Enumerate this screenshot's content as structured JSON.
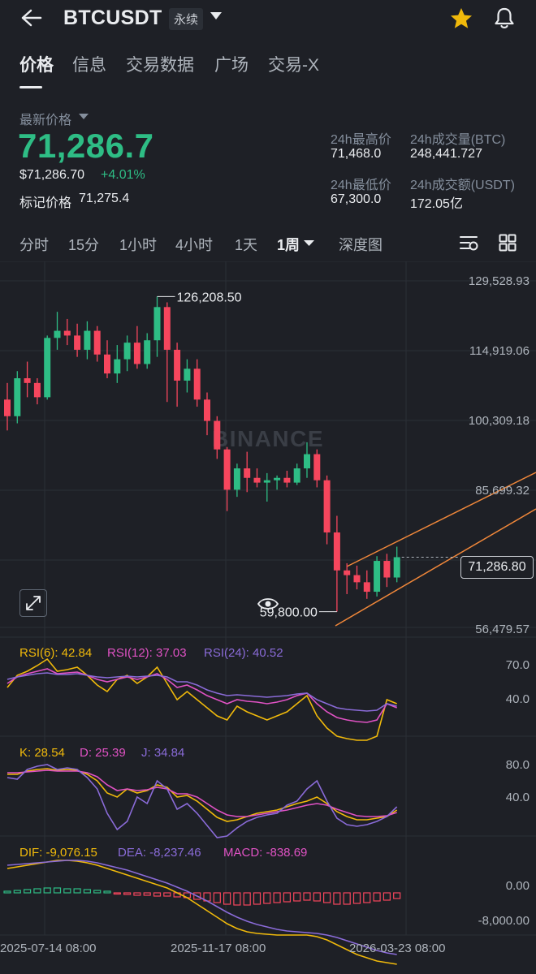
{
  "header": {
    "symbol": "BTCUSDT",
    "contract_tag": "永续"
  },
  "tabs": [
    {
      "label": "价格",
      "active": true
    },
    {
      "label": "信息"
    },
    {
      "label": "交易数据"
    },
    {
      "label": "广场"
    },
    {
      "label": "交易-X"
    }
  ],
  "price": {
    "latest_label": "最新价格",
    "last": "71,286.7",
    "usd": "$71,286.70",
    "change": "+4.01%",
    "mark_label": "标记价格",
    "mark": "71,275.4"
  },
  "stats": {
    "high_label": "24h最高价",
    "high": "71,468.0",
    "vol_btc_label": "24h成交量(BTC)",
    "vol_btc": "248,441.727",
    "low_label": "24h最低价",
    "low": "67,300.0",
    "vol_usdt_label": "24h成交额(USDT)",
    "vol_usdt": "172.05亿"
  },
  "timeframes": [
    {
      "label": "分时"
    },
    {
      "label": "15分"
    },
    {
      "label": "1小时"
    },
    {
      "label": "4小时"
    },
    {
      "label": "1天"
    },
    {
      "label": "1周",
      "active": true
    },
    {
      "label": "深度图"
    }
  ],
  "chart_data": {
    "type": "candlestick",
    "interval": "1周",
    "price_axis": [
      "129,528.93",
      "114,919.06",
      "100,309.18",
      "85,699.32",
      "56,479.57"
    ],
    "price_range": [
      56479.57,
      129528.93
    ],
    "current_price_label": "71,286.80",
    "high_annotation": "126,208.50",
    "low_annotation": "59,800.00",
    "x_axis": [
      "2025-07-14 08:00",
      "2025-11-17 08:00",
      "2026-03-23 08:00"
    ],
    "watermark": "BINANCE",
    "candles": [
      [
        104500,
        108000,
        98000,
        101000
      ],
      [
        101000,
        110500,
        99500,
        109000
      ],
      [
        109000,
        112500,
        105000,
        108000
      ],
      [
        108000,
        109000,
        103500,
        105000
      ],
      [
        105000,
        118000,
        104500,
        117500
      ],
      [
        117500,
        123000,
        115000,
        119000
      ],
      [
        119000,
        121500,
        116000,
        118000
      ],
      [
        118000,
        120500,
        113500,
        115000
      ],
      [
        115000,
        121000,
        113000,
        119000
      ],
      [
        119000,
        120000,
        112500,
        114000
      ],
      [
        114000,
        117000,
        109000,
        110000
      ],
      [
        110000,
        116000,
        108000,
        113000
      ],
      [
        113000,
        118000,
        110500,
        116500
      ],
      [
        116500,
        120000,
        111000,
        112000
      ],
      [
        112000,
        118500,
        111000,
        117000
      ],
      [
        117000,
        126208.5,
        113500,
        124000
      ],
      [
        124000,
        125000,
        104000,
        115000
      ],
      [
        115000,
        116500,
        103000,
        108500
      ],
      [
        108500,
        113000,
        106000,
        111000
      ],
      [
        111000,
        113000,
        103000,
        104500
      ],
      [
        104500,
        106000,
        97000,
        100000
      ],
      [
        100000,
        101000,
        92000,
        94000
      ],
      [
        94000,
        94500,
        81000,
        85500
      ],
      [
        85500,
        91000,
        84000,
        90000
      ],
      [
        90000,
        93500,
        85000,
        88000
      ],
      [
        88000,
        90000,
        86000,
        87000
      ],
      [
        87000,
        89000,
        83000,
        87500
      ],
      [
        87500,
        88500,
        85500,
        88000
      ],
      [
        88000,
        89500,
        86000,
        87000
      ],
      [
        87000,
        91000,
        86500,
        90000
      ],
      [
        90000,
        95500,
        88000,
        93000
      ],
      [
        93000,
        94000,
        86000,
        87500
      ],
      [
        87500,
        88500,
        74000,
        76500
      ],
      [
        76500,
        80000,
        59800,
        68500
      ],
      [
        68500,
        70000,
        63500,
        67500
      ],
      [
        67500,
        69500,
        64500,
        66000
      ],
      [
        66000,
        68500,
        62500,
        64000
      ],
      [
        64000,
        71500,
        63000,
        70500
      ],
      [
        70500,
        72000,
        65000,
        67000
      ],
      [
        67000,
        73500,
        66000,
        71286.7
      ]
    ],
    "rsi": {
      "rsi6_label": "RSI(6): 42.84",
      "rsi12_label": "RSI(12): 37.03",
      "rsi24_label": "RSI(24): 40.52",
      "axis": [
        "70.0",
        "40.0"
      ]
    },
    "kdj": {
      "k_label": "K: 28.54",
      "d_label": "D: 25.39",
      "j_label": "J: 34.84",
      "axis": [
        "80.0",
        "40.0"
      ]
    },
    "macd": {
      "dif_label": "DIF: -9,076.15",
      "dea_label": "DEA: -8,237.46",
      "macd_label": "MACD: -838.69",
      "axis": [
        "0.00",
        "-8,000.00"
      ]
    }
  },
  "colors": {
    "up": "#2ebd85",
    "down": "#f6465d",
    "accent": "#f0b90b",
    "rsi6": "#f0b90b",
    "rsi12": "#e052c4",
    "rsi24": "#8a6bd8",
    "channel": "#f0873a"
  }
}
